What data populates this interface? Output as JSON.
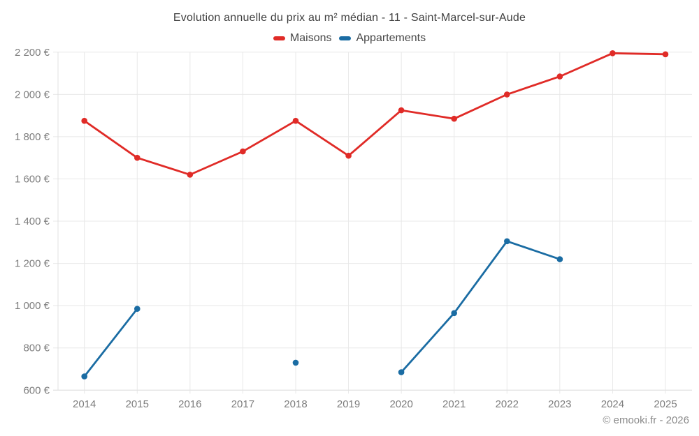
{
  "chart_data": {
    "type": "line",
    "title": "Evolution annuelle du prix au m² médian - 11 - Saint-Marcel-sur-Aude",
    "categories": [
      "2014",
      "2015",
      "2016",
      "2017",
      "2018",
      "2019",
      "2020",
      "2021",
      "2022",
      "2023",
      "2024",
      "2025"
    ],
    "series": [
      {
        "name": "Maisons",
        "color": "#e02b27",
        "values": [
          1875,
          1700,
          1620,
          1730,
          1875,
          1710,
          1925,
          1885,
          2000,
          2085,
          2195,
          2190
        ]
      },
      {
        "name": "Appartements",
        "color": "#1a6ca3",
        "values": [
          665,
          985,
          null,
          null,
          730,
          null,
          685,
          965,
          1305,
          1220,
          null,
          null
        ]
      }
    ],
    "xlabel": "",
    "ylabel": "",
    "ylim": [
      600,
      2200
    ],
    "y_ticks": [
      600,
      800,
      1000,
      1200,
      1400,
      1600,
      1800,
      2000,
      2200
    ],
    "y_tick_labels": [
      "600 €",
      "800 €",
      "1 000 €",
      "1 200 €",
      "1 400 €",
      "1 600 €",
      "1 800 €",
      "2 000 €",
      "2 200 €"
    ],
    "grid": true,
    "legend_position": "top"
  },
  "colors": {
    "background": "#ffffff",
    "gridline": "#e8e8e8",
    "axis_line": "#e0e0e0",
    "tick_text": "#7d7d7d",
    "title_text": "#3f3f3f",
    "footer_text": "#8a8a8a"
  },
  "footer": {
    "copyright": "© emooki.fr - 2026"
  }
}
